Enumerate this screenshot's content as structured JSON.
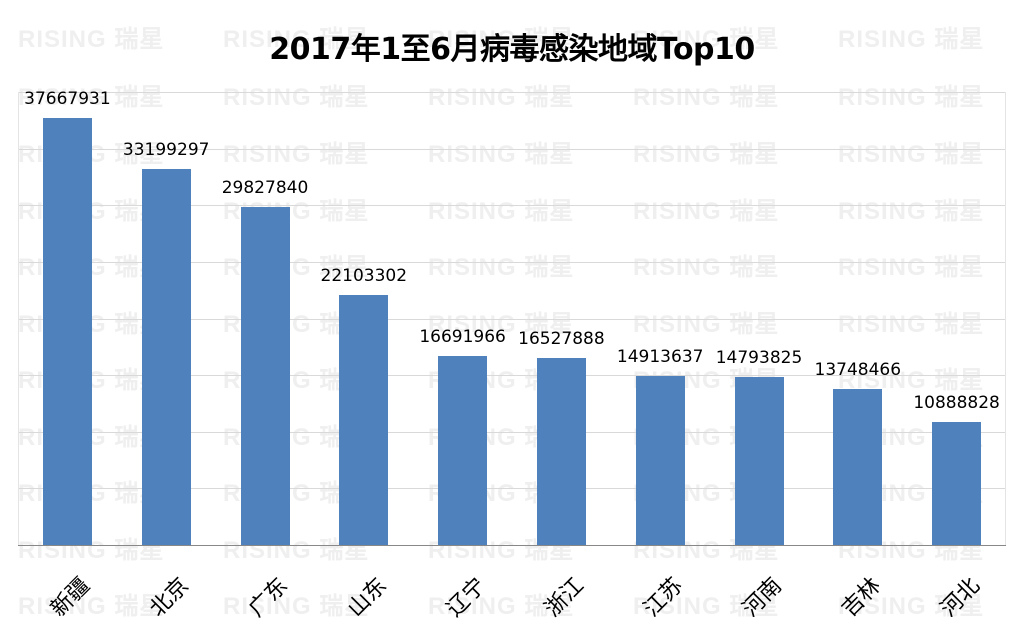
{
  "chart_data": {
    "type": "bar",
    "title": "2017年1至6月病毒感染地域Top10",
    "categories": [
      "新疆",
      "北京",
      "广东",
      "山东",
      "辽宁",
      "浙江",
      "江苏",
      "河南",
      "吉林",
      "河北"
    ],
    "values": [
      37667931,
      33199297,
      29827840,
      22103302,
      16691966,
      16527888,
      14913637,
      14793825,
      13748466,
      10888828
    ],
    "xlabel": "",
    "ylabel": "",
    "ylim": [
      0,
      40000000
    ],
    "grid": true,
    "grid_step": 5000000,
    "legend": "none",
    "data_labels": true,
    "bar_color": "#4f81bd",
    "x_tick_rotation": -45
  },
  "watermark": {
    "text_en": "RISING",
    "text_cn": "瑞星",
    "color": "#efefef"
  }
}
